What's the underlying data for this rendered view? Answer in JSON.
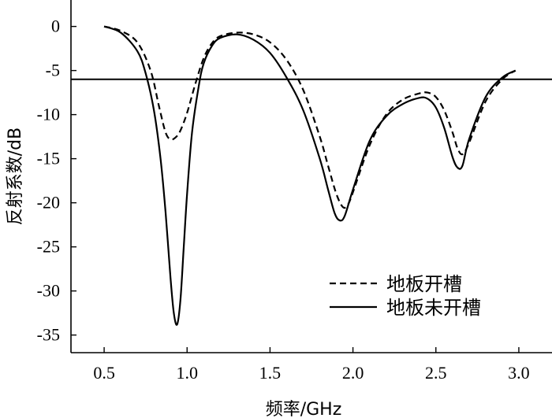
{
  "chart_data": {
    "type": "line",
    "title": "",
    "xlabel": "频率/GHz",
    "ylabel": "反射系数/dB",
    "xlim": [
      0.3,
      3.2
    ],
    "ylim": [
      -37,
      3
    ],
    "xticks": [
      0.5,
      1.0,
      1.5,
      2.0,
      2.5,
      3.0
    ],
    "xtick_labels": [
      "0.5",
      "1.0",
      "1.5",
      "2.0",
      "2.5",
      "3.0"
    ],
    "yticks": [
      0,
      -5,
      -10,
      -15,
      -20,
      -25,
      -30,
      -35
    ],
    "ytick_labels": [
      "0",
      "-5",
      "-10",
      "-15",
      "-20",
      "-25",
      "-30",
      "-35"
    ],
    "reference_line": {
      "y": -6
    },
    "grid": false,
    "legend_position": "bottom-right",
    "series": [
      {
        "name": "地板开槽",
        "style": "dashed",
        "color": "#000000",
        "x": [
          0.5,
          0.6,
          0.7,
          0.78,
          0.83,
          0.87,
          0.9,
          0.93,
          0.96,
          1.0,
          1.05,
          1.1,
          1.15,
          1.2,
          1.3,
          1.4,
          1.5,
          1.6,
          1.7,
          1.8,
          1.85,
          1.9,
          1.94,
          1.97,
          2.0,
          2.1,
          2.2,
          2.3,
          2.4,
          2.45,
          2.5,
          2.55,
          2.6,
          2.63,
          2.66,
          2.7,
          2.8,
          2.9,
          2.98
        ],
        "y": [
          0,
          -0.5,
          -1.8,
          -5.0,
          -9.0,
          -12.0,
          -12.8,
          -12.6,
          -11.8,
          -9.8,
          -6.5,
          -3.6,
          -1.9,
          -1.1,
          -0.7,
          -0.9,
          -1.8,
          -3.8,
          -7.2,
          -12.5,
          -15.8,
          -19.0,
          -20.5,
          -20.2,
          -18.8,
          -13.5,
          -10.0,
          -8.3,
          -7.6,
          -7.5,
          -8.0,
          -9.5,
          -12.0,
          -13.8,
          -14.5,
          -13.2,
          -8.5,
          -6.0,
          -5.0
        ]
      },
      {
        "name": "地板未开槽",
        "style": "solid",
        "color": "#000000",
        "x": [
          0.5,
          0.6,
          0.7,
          0.75,
          0.8,
          0.84,
          0.87,
          0.9,
          0.92,
          0.94,
          0.96,
          0.98,
          1.0,
          1.03,
          1.07,
          1.1,
          1.15,
          1.2,
          1.3,
          1.4,
          1.5,
          1.6,
          1.7,
          1.8,
          1.85,
          1.89,
          1.92,
          1.95,
          2.0,
          2.1,
          2.2,
          2.3,
          2.4,
          2.45,
          2.5,
          2.55,
          2.6,
          2.63,
          2.66,
          2.7,
          2.8,
          2.9,
          2.98
        ],
        "y": [
          0,
          -0.7,
          -2.8,
          -5.3,
          -9.5,
          -15.0,
          -21.0,
          -28.5,
          -32.5,
          -33.8,
          -31.0,
          -25.0,
          -19.0,
          -12.0,
          -6.8,
          -4.2,
          -2.2,
          -1.3,
          -0.9,
          -1.5,
          -3.0,
          -5.8,
          -9.5,
          -15.0,
          -18.5,
          -21.2,
          -22.0,
          -21.5,
          -18.5,
          -13.0,
          -10.2,
          -8.8,
          -8.1,
          -8.2,
          -9.2,
          -11.5,
          -14.8,
          -16.0,
          -15.8,
          -12.8,
          -8.0,
          -5.8,
          -5.0
        ]
      }
    ]
  }
}
